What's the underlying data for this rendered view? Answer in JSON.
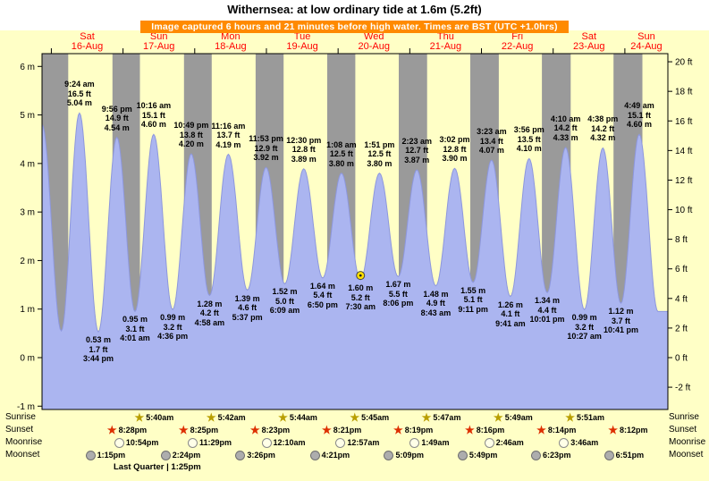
{
  "header": {
    "title": "Withernsea: at low ordinary tide at 1.6m (5.2ft)",
    "banner": "Image captured 6 hours and 21 minutes before high water. Times are BST (UTC +1.0hrs)"
  },
  "colors": {
    "page_bg": "#ffffc6",
    "night": "#9a9a9a",
    "tide_fill": "#abb5f0",
    "tide_stroke": "#8d97dd",
    "day_label": "#ff0000",
    "banner_bg": "#ff8a00",
    "marker": "#ffe000"
  },
  "chart_data": {
    "type": "area",
    "title": "Withernsea: at low ordinary tide at 1.6m (5.2ft)",
    "x_domain_days": [
      -0.13,
      8.6
    ],
    "y_range_m": [
      -1,
      6
    ],
    "grid": false,
    "axes": {
      "left_ticks": [
        "6 m",
        "5 m",
        "4 m",
        "3 m",
        "2 m",
        "1 m",
        "0 m",
        "-1 m"
      ],
      "right_ticks": [
        "20 ft",
        "18 ft",
        "16 ft",
        "14 ft",
        "12 ft",
        "10 ft",
        "8 ft",
        "6 ft",
        "4 ft",
        "2 ft",
        "0 ft",
        "-2 ft"
      ]
    },
    "days": [
      {
        "day": "Sat",
        "date": "16-Aug"
      },
      {
        "day": "Sun",
        "date": "17-Aug"
      },
      {
        "day": "Mon",
        "date": "18-Aug"
      },
      {
        "day": "Tue",
        "date": "19-Aug"
      },
      {
        "day": "Wed",
        "date": "20-Aug"
      },
      {
        "day": "Thu",
        "date": "21-Aug"
      },
      {
        "day": "Fri",
        "date": "22-Aug"
      },
      {
        "day": "Sat",
        "date": "23-Aug"
      },
      {
        "day": "Sun",
        "date": "24-Aug"
      }
    ],
    "night_bands": [
      [
        -0.13,
        0.236
      ],
      [
        0.853,
        1.236
      ],
      [
        1.851,
        2.238
      ],
      [
        2.849,
        3.239
      ],
      [
        3.848,
        4.24
      ],
      [
        4.846,
        5.241
      ],
      [
        5.844,
        6.242
      ],
      [
        6.843,
        7.244
      ],
      [
        7.842,
        8.245
      ]
    ],
    "extremes": [
      {
        "t": -0.129,
        "h": 4.8
      },
      {
        "t": 0.139,
        "h": 0.55
      },
      {
        "t": 0.392,
        "h": 5.04,
        "kind": "high",
        "label": [
          "9:24 am",
          "16.5 ft",
          "5.04 m"
        ]
      },
      {
        "t": 0.656,
        "h": 0.53,
        "kind": "low",
        "label": [
          "0.53 m",
          "1.7 ft",
          "3:44 pm"
        ]
      },
      {
        "t": 0.914,
        "h": 4.54,
        "kind": "high",
        "label": [
          "9:56 pm",
          "14.9 ft",
          "4.54 m"
        ]
      },
      {
        "t": 1.167,
        "h": 0.95,
        "kind": "low",
        "label": [
          "0.95 m",
          "3.1 ft",
          "4:01 am"
        ]
      },
      {
        "t": 1.428,
        "h": 4.6,
        "kind": "high",
        "label": [
          "10:16 am",
          "15.1 ft",
          "4.60 m"
        ]
      },
      {
        "t": 1.692,
        "h": 0.99,
        "kind": "low",
        "label": [
          "0.99 m",
          "3.2 ft",
          "4:36 pm"
        ]
      },
      {
        "t": 1.951,
        "h": 4.2,
        "kind": "high",
        "label": [
          "10:49 pm",
          "13.8 ft",
          "4.20 m"
        ]
      },
      {
        "t": 2.207,
        "h": 1.28,
        "kind": "low",
        "label": [
          "1.28 m",
          "4.2 ft",
          "4:58 am"
        ]
      },
      {
        "t": 2.469,
        "h": 4.19,
        "kind": "high",
        "label": [
          "11:16 am",
          "13.7 ft",
          "4.19 m"
        ]
      },
      {
        "t": 2.734,
        "h": 1.39,
        "kind": "low",
        "label": [
          "1.39 m",
          "4.6 ft",
          "5:37 pm"
        ]
      },
      {
        "t": 2.995,
        "h": 3.92,
        "kind": "high",
        "label": [
          "11:53 pm",
          "12.9 ft",
          "3.92 m"
        ]
      },
      {
        "t": 3.256,
        "h": 1.52,
        "kind": "low",
        "label": [
          "1.52 m",
          "5.0 ft",
          "6:09 am"
        ]
      },
      {
        "t": 3.521,
        "h": 3.89,
        "kind": "high",
        "label": [
          "12:30 pm",
          "12.8 ft",
          "3.89 m"
        ]
      },
      {
        "t": 3.785,
        "h": 1.64,
        "kind": "low",
        "label": [
          "1.64 m",
          "5.4 ft",
          "6:50 pm"
        ]
      },
      {
        "t": 4.047,
        "h": 3.8,
        "kind": "high",
        "label": [
          "1:08 am",
          "12.5 ft",
          "3.80 m"
        ]
      },
      {
        "t": 4.3125,
        "h": 1.6,
        "kind": "low",
        "label": [
          "1.60 m",
          "5.2 ft",
          "7:30 am"
        ],
        "marker": true
      },
      {
        "t": 4.577,
        "h": 3.8,
        "kind": "high",
        "label": [
          "1:51 pm",
          "12.5 ft",
          "3.80 m"
        ]
      },
      {
        "t": 4.838,
        "h": 1.67,
        "kind": "low",
        "label": [
          "1.67 m",
          "5.5 ft",
          "8:06 pm"
        ]
      },
      {
        "t": 5.099,
        "h": 3.87,
        "kind": "high",
        "label": [
          "2:23 am",
          "12.7 ft",
          "3.87 m"
        ]
      },
      {
        "t": 5.363,
        "h": 1.48,
        "kind": "low",
        "label": [
          "1.48 m",
          "4.9 ft",
          "8:43 am"
        ]
      },
      {
        "t": 5.626,
        "h": 3.9,
        "kind": "high",
        "label": [
          "3:02 pm",
          "12.8 ft",
          "3.90 m"
        ]
      },
      {
        "t": 5.883,
        "h": 1.55,
        "kind": "low",
        "label": [
          "1.55 m",
          "5.1 ft",
          "9:11 pm"
        ]
      },
      {
        "t": 6.141,
        "h": 4.07,
        "kind": "high",
        "label": [
          "3:23 am",
          "13.4 ft",
          "4.07 m"
        ]
      },
      {
        "t": 6.403,
        "h": 1.26,
        "kind": "low",
        "label": [
          "1.26 m",
          "4.1 ft",
          "9:41 am"
        ]
      },
      {
        "t": 6.664,
        "h": 4.1,
        "kind": "high",
        "label": [
          "3:56 pm",
          "13.5 ft",
          "4.10 m"
        ]
      },
      {
        "t": 6.917,
        "h": 1.34,
        "kind": "low",
        "label": [
          "1.34 m",
          "4.4 ft",
          "10:01 pm"
        ]
      },
      {
        "t": 7.174,
        "h": 4.33,
        "kind": "high",
        "label": [
          "4:10 am",
          "14.2 ft",
          "4.33 m"
        ]
      },
      {
        "t": 7.435,
        "h": 0.99,
        "kind": "low",
        "label": [
          "0.99 m",
          "3.2 ft",
          "10:27 am"
        ]
      },
      {
        "t": 7.693,
        "h": 4.32,
        "kind": "high",
        "label": [
          "4:38 pm",
          "14.2 ft",
          "4.32 m"
        ]
      },
      {
        "t": 7.945,
        "h": 1.12,
        "kind": "low",
        "label": [
          "1.12 m",
          "3.7 ft",
          "10:41 pm"
        ]
      },
      {
        "t": 8.201,
        "h": 4.6,
        "kind": "high",
        "label": [
          "4:49 am",
          "15.1 ft",
          "4.60 m"
        ]
      },
      {
        "t": 8.462,
        "h": 0.95
      },
      {
        "t": 8.6,
        "h": 0.95
      }
    ]
  },
  "sun_moon": {
    "rows": [
      {
        "label": "Sunrise",
        "icon": "sunrise-star-icon",
        "entries": [
          {
            "t": 1.236,
            "time": "5:40am"
          },
          {
            "t": 2.238,
            "time": "5:42am"
          },
          {
            "t": 3.239,
            "time": "5:44am"
          },
          {
            "t": 4.24,
            "time": "5:45am"
          },
          {
            "t": 5.241,
            "time": "5:47am"
          },
          {
            "t": 6.242,
            "time": "5:49am"
          },
          {
            "t": 7.244,
            "time": "5:51am"
          }
        ]
      },
      {
        "label": "Sunset",
        "icon": "sunset-star-icon",
        "entries": [
          {
            "t": 0.853,
            "time": "8:28pm"
          },
          {
            "t": 1.851,
            "time": "8:25pm"
          },
          {
            "t": 2.849,
            "time": "8:23pm"
          },
          {
            "t": 3.848,
            "time": "8:21pm"
          },
          {
            "t": 4.846,
            "time": "8:19pm"
          },
          {
            "t": 5.844,
            "time": "8:16pm"
          },
          {
            "t": 6.843,
            "time": "8:14pm"
          },
          {
            "t": 7.842,
            "time": "8:12pm"
          }
        ]
      },
      {
        "label": "Moonrise",
        "icon": "moonrise-moon-icon",
        "entries": [
          {
            "t": 0.954,
            "time": "10:54pm"
          },
          {
            "t": 1.978,
            "time": "11:29pm"
          },
          {
            "t": 3.007,
            "time": "12:10am"
          },
          {
            "t": 4.04,
            "time": "12:57am"
          },
          {
            "t": 5.076,
            "time": "1:49am"
          },
          {
            "t": 6.115,
            "time": "2:46am"
          },
          {
            "t": 7.157,
            "time": "3:46am"
          }
        ]
      },
      {
        "label": "Moonset",
        "icon": "moonset-moon-icon",
        "entries": [
          {
            "t": 0.552,
            "time": "1:15pm"
          },
          {
            "t": 1.6,
            "time": "2:24pm"
          },
          {
            "t": 2.643,
            "time": "3:26pm"
          },
          {
            "t": 3.681,
            "time": "4:21pm"
          },
          {
            "t": 4.715,
            "time": "5:09pm"
          },
          {
            "t": 5.742,
            "time": "5:49pm"
          },
          {
            "t": 6.766,
            "time": "6:23pm"
          },
          {
            "t": 7.785,
            "time": "6:51pm"
          }
        ]
      }
    ],
    "moon_phase": "Last Quarter | 1:25pm"
  }
}
